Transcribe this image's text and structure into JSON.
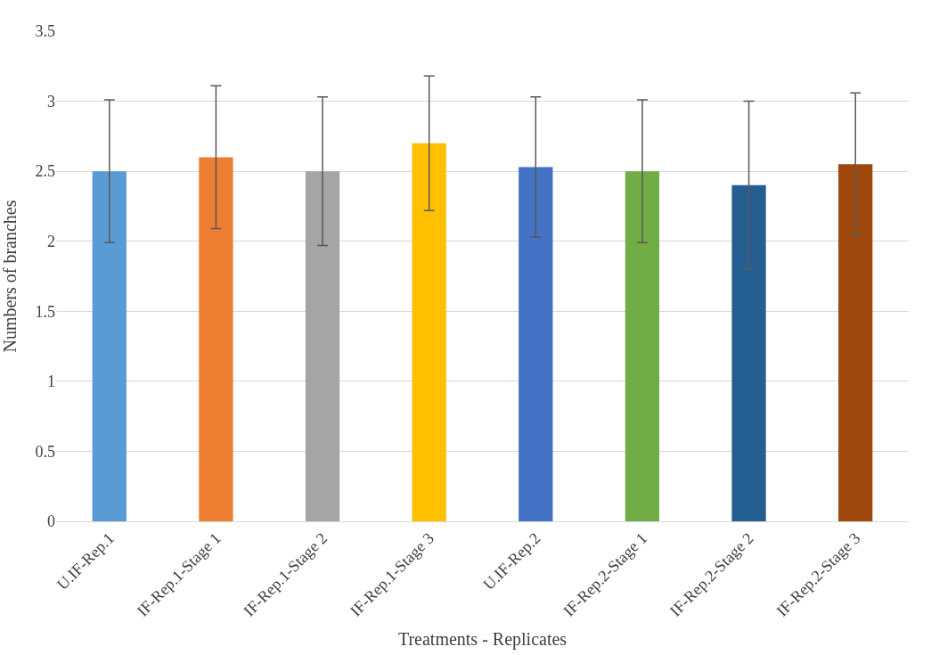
{
  "chart_data": {
    "type": "bar",
    "xlabel": "Treatments - Replicates",
    "ylabel": "Numbers of branches",
    "categories": [
      "U.IF-Rep.1",
      "IF-Rep.1-Stage 1",
      "IF-Rep.1-Stage 2",
      "IF-Rep.1-Stage 3",
      "U.IF-Rep.2",
      "IF-Rep.2-Stage 1",
      "IF-Rep.2-Stage 2",
      "IF-Rep.2-Stage 3"
    ],
    "values": [
      2.5,
      2.6,
      2.5,
      2.7,
      2.53,
      2.5,
      2.4,
      2.55
    ],
    "errors": [
      0.51,
      0.51,
      0.53,
      0.48,
      0.5,
      0.51,
      0.6,
      0.51
    ],
    "colors": [
      "#5b9bd5",
      "#ed7d31",
      "#a5a5a5",
      "#ffc000",
      "#4472c4",
      "#70ad47",
      "#255e91",
      "#9e480e"
    ],
    "ylim": [
      0,
      3.5
    ],
    "yticks": [
      0,
      0.5,
      1,
      1.5,
      2,
      2.5,
      3,
      3.5
    ],
    "grid": "y",
    "legend": false
  }
}
